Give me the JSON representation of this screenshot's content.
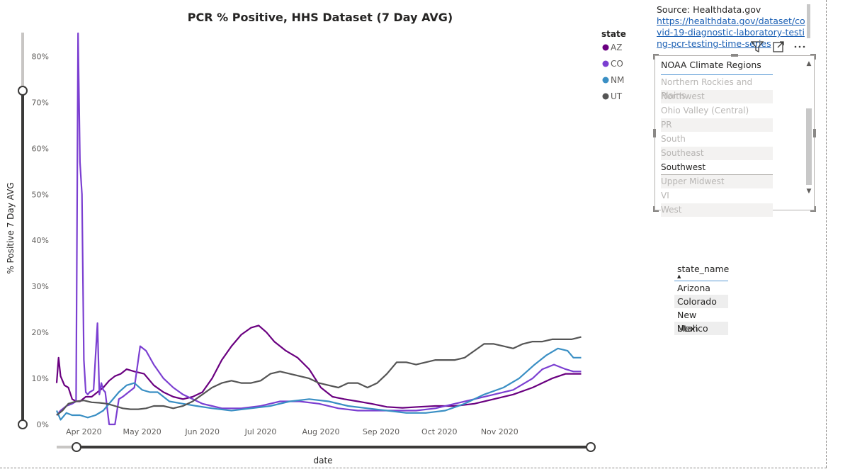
{
  "chart_data": {
    "type": "line",
    "title": "PCR % Positive, HHS Dataset (7 Day AVG)",
    "xlabel": "date",
    "ylabel": "% Positive 7 Day AVG",
    "ylim": [
      0,
      0.85
    ],
    "y_ticks": [
      "0%",
      "10%",
      "20%",
      "30%",
      "40%",
      "50%",
      "60%",
      "70%",
      "80%"
    ],
    "y_tick_values": [
      0,
      0.1,
      0.2,
      0.3,
      0.4,
      0.5,
      0.6,
      0.7,
      0.8
    ],
    "x_ticks": [
      "Apr 2020",
      "May 2020",
      "Jun 2020",
      "Jul 2020",
      "Aug 2020",
      "Sep 2020",
      "Oct 2020",
      "Nov 2020"
    ],
    "x_tick_days": [
      14,
      44,
      75,
      105,
      136,
      167,
      197,
      228
    ],
    "xlim": [
      0,
      272
    ],
    "legend_title": "state",
    "legend_position": "top-right",
    "series": [
      {
        "name": "AZ",
        "color": "#6a0080",
        "x": [
          0,
          1,
          2,
          4,
          6,
          8,
          10,
          12,
          15,
          18,
          21,
          24,
          27,
          30,
          33,
          36,
          40,
          45,
          50,
          55,
          60,
          65,
          70,
          75,
          80,
          85,
          90,
          95,
          100,
          104,
          108,
          112,
          118,
          124,
          130,
          136,
          142,
          148,
          155,
          162,
          170,
          178,
          186,
          195,
          205,
          215,
          225,
          235,
          245,
          255,
          262,
          266,
          270
        ],
        "y": [
          0.09,
          0.145,
          0.105,
          0.085,
          0.08,
          0.055,
          0.05,
          0.05,
          0.06,
          0.06,
          0.07,
          0.08,
          0.095,
          0.105,
          0.11,
          0.12,
          0.115,
          0.11,
          0.085,
          0.07,
          0.06,
          0.055,
          0.06,
          0.07,
          0.1,
          0.14,
          0.17,
          0.195,
          0.21,
          0.215,
          0.2,
          0.18,
          0.16,
          0.145,
          0.12,
          0.08,
          0.06,
          0.055,
          0.05,
          0.045,
          0.038,
          0.036,
          0.038,
          0.04,
          0.04,
          0.045,
          0.055,
          0.065,
          0.08,
          0.1,
          0.11,
          0.11,
          0.11
        ]
      },
      {
        "name": "CO",
        "color": "#7b3fd1",
        "x": [
          0,
          2,
          5,
          8,
          10,
          11,
          12,
          13,
          14,
          15,
          16,
          17,
          19,
          21,
          22,
          23,
          24,
          25,
          27,
          29,
          30,
          32,
          34,
          37,
          40,
          43,
          46,
          50,
          55,
          60,
          65,
          70,
          75,
          80,
          85,
          95,
          105,
          115,
          125,
          135,
          145,
          155,
          165,
          175,
          185,
          195,
          205,
          215,
          225,
          235,
          245,
          250,
          256,
          262,
          266,
          270
        ],
        "y": [
          0.02,
          0.03,
          0.04,
          0.045,
          0.05,
          0.85,
          0.57,
          0.5,
          0.14,
          0.07,
          0.065,
          0.07,
          0.075,
          0.22,
          0.065,
          0.09,
          0.075,
          0.07,
          0.0,
          0.0,
          0.0,
          0.055,
          0.06,
          0.07,
          0.08,
          0.17,
          0.16,
          0.13,
          0.1,
          0.08,
          0.065,
          0.055,
          0.045,
          0.04,
          0.035,
          0.035,
          0.04,
          0.05,
          0.05,
          0.045,
          0.035,
          0.03,
          0.03,
          0.03,
          0.03,
          0.035,
          0.045,
          0.055,
          0.065,
          0.075,
          0.1,
          0.12,
          0.13,
          0.12,
          0.115,
          0.115
        ]
      },
      {
        "name": "NM",
        "color": "#3a8fc4",
        "x": [
          0,
          2,
          5,
          8,
          12,
          16,
          20,
          24,
          28,
          32,
          36,
          40,
          44,
          48,
          52,
          58,
          65,
          72,
          80,
          90,
          100,
          110,
          120,
          130,
          140,
          150,
          160,
          170,
          180,
          190,
          200,
          210,
          220,
          230,
          238,
          246,
          252,
          258,
          263,
          266,
          270
        ],
        "y": [
          0.03,
          0.01,
          0.025,
          0.02,
          0.02,
          0.015,
          0.02,
          0.03,
          0.05,
          0.07,
          0.085,
          0.09,
          0.075,
          0.07,
          0.07,
          0.05,
          0.045,
          0.04,
          0.035,
          0.03,
          0.035,
          0.04,
          0.05,
          0.055,
          0.05,
          0.04,
          0.035,
          0.03,
          0.025,
          0.025,
          0.03,
          0.045,
          0.065,
          0.08,
          0.1,
          0.13,
          0.15,
          0.165,
          0.16,
          0.145,
          0.145
        ]
      },
      {
        "name": "UT",
        "color": "#555555",
        "x": [
          0,
          3,
          6,
          10,
          14,
          18,
          22,
          26,
          30,
          34,
          38,
          42,
          46,
          50,
          55,
          60,
          65,
          70,
          75,
          80,
          85,
          90,
          95,
          100,
          105,
          110,
          115,
          120,
          125,
          130,
          135,
          140,
          145,
          150,
          155,
          160,
          165,
          170,
          175,
          180,
          185,
          190,
          195,
          200,
          205,
          210,
          215,
          220,
          225,
          230,
          235,
          240,
          245,
          250,
          255,
          260,
          265,
          270
        ],
        "y": [
          0.02,
          0.03,
          0.045,
          0.05,
          0.052,
          0.048,
          0.047,
          0.045,
          0.04,
          0.035,
          0.033,
          0.033,
          0.035,
          0.04,
          0.04,
          0.035,
          0.04,
          0.05,
          0.065,
          0.08,
          0.09,
          0.095,
          0.09,
          0.09,
          0.095,
          0.11,
          0.115,
          0.11,
          0.105,
          0.1,
          0.09,
          0.085,
          0.08,
          0.09,
          0.09,
          0.08,
          0.09,
          0.11,
          0.135,
          0.135,
          0.13,
          0.135,
          0.14,
          0.14,
          0.14,
          0.145,
          0.16,
          0.175,
          0.175,
          0.17,
          0.165,
          0.175,
          0.18,
          0.18,
          0.185,
          0.185,
          0.185,
          0.19
        ]
      }
    ]
  },
  "source": {
    "label": "Source: Healthdata.gov",
    "link": "https://healthdata.gov/dataset/covid-19-diagnostic-laboratory-testing-pcr-testing-time-series"
  },
  "icons": {
    "filter": "filter-icon",
    "focus": "focus-mode-icon",
    "more": "more-options-icon"
  },
  "slicer": {
    "title": "NOAA Climate Regions",
    "items": [
      {
        "label": "Northern Rockies and Plains",
        "selected": false
      },
      {
        "label": "Northwest",
        "selected": false
      },
      {
        "label": "Ohio Valley (Central)",
        "selected": false
      },
      {
        "label": "PR",
        "selected": false
      },
      {
        "label": "South",
        "selected": false
      },
      {
        "label": "Southeast",
        "selected": false
      },
      {
        "label": "Southwest",
        "selected": true
      },
      {
        "label": "Upper Midwest",
        "selected": false
      },
      {
        "label": "VI",
        "selected": false
      },
      {
        "label": "West",
        "selected": false
      }
    ]
  },
  "state_table": {
    "header": "state_name",
    "rows": [
      "Arizona",
      "Colorado",
      "New Mexico",
      "Utah"
    ]
  }
}
